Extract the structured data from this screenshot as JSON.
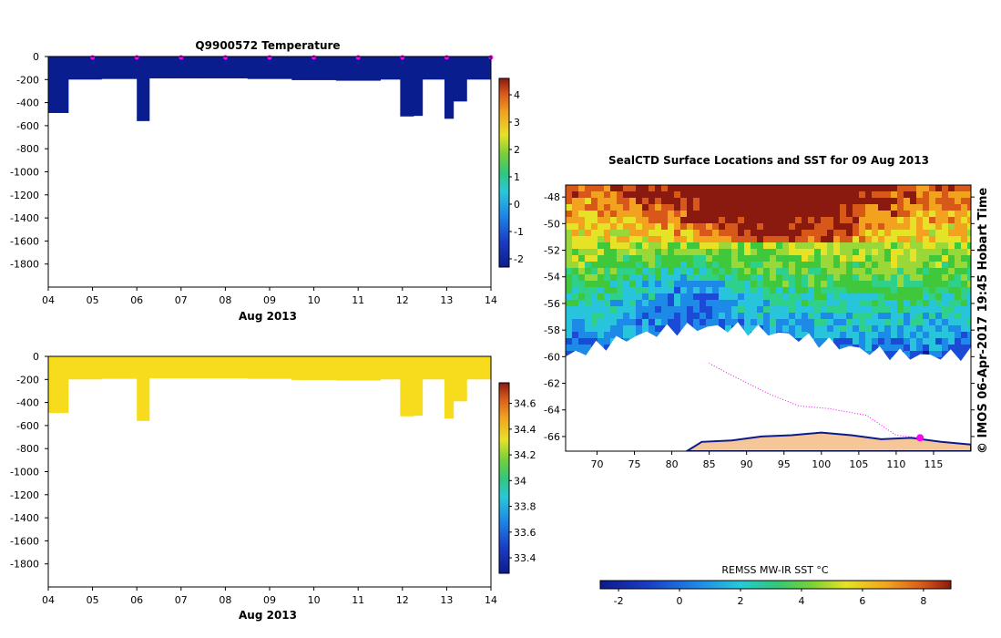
{
  "chart_data": [
    {
      "type": "heatmap",
      "title": "Q9900572  Temperature",
      "x_ticks": [
        "04",
        "05",
        "06",
        "07",
        "08",
        "09",
        "10",
        "11",
        "12",
        "13",
        "14"
      ],
      "xlabel": "Aug 2013",
      "y_ticks": [
        "0",
        "-200",
        "-400",
        "-600",
        "-800",
        "-1000",
        "-1200",
        "-1400",
        "-1600",
        "-1800"
      ],
      "ylim": [
        -2000,
        0
      ],
      "colorbar_ticks": [
        "4",
        "3",
        "2",
        "1",
        "0",
        "-1",
        "-2"
      ],
      "colorbar_range": [
        -2.3,
        4.6
      ],
      "fill_color": "#0a1d8e",
      "profiles": [
        {
          "x0": 4.0,
          "x1": 4.45,
          "depth": -490
        },
        {
          "x0": 4.45,
          "x1": 5.2,
          "depth": -200
        },
        {
          "x0": 5.2,
          "x1": 6.0,
          "depth": -195
        },
        {
          "x0": 6.0,
          "x1": 6.28,
          "depth": -560
        },
        {
          "x0": 6.28,
          "x1": 6.7,
          "depth": -190
        },
        {
          "x0": 6.7,
          "x1": 7.5,
          "depth": -190
        },
        {
          "x0": 7.5,
          "x1": 8.5,
          "depth": -190
        },
        {
          "x0": 8.5,
          "x1": 9.5,
          "depth": -195
        },
        {
          "x0": 9.5,
          "x1": 10.5,
          "depth": -205
        },
        {
          "x0": 10.5,
          "x1": 11.5,
          "depth": -210
        },
        {
          "x0": 11.5,
          "x1": 11.95,
          "depth": -200
        },
        {
          "x0": 11.95,
          "x1": 12.25,
          "depth": -520
        },
        {
          "x0": 12.25,
          "x1": 12.45,
          "depth": -515
        },
        {
          "x0": 12.45,
          "x1": 12.95,
          "depth": -200
        },
        {
          "x0": 12.95,
          "x1": 13.15,
          "depth": -540
        },
        {
          "x0": 13.15,
          "x1": 13.45,
          "depth": -390
        },
        {
          "x0": 13.45,
          "x1": 14.0,
          "depth": -200
        }
      ],
      "markers_x": [
        5.0,
        6.0,
        7.0,
        8.0,
        9.0,
        10.0,
        11.0,
        12.0,
        13.0,
        14.0
      ],
      "marker_color": "#ff00ff"
    },
    {
      "type": "heatmap",
      "title": "",
      "x_ticks": [
        "04",
        "05",
        "06",
        "07",
        "08",
        "09",
        "10",
        "11",
        "12",
        "13",
        "14"
      ],
      "xlabel": "Aug 2013",
      "y_ticks": [
        "0",
        "-200",
        "-400",
        "-600",
        "-800",
        "-1000",
        "-1200",
        "-1400",
        "-1600",
        "-1800"
      ],
      "ylim": [
        -2000,
        0
      ],
      "colorbar_ticks": [
        "34.6",
        "34.4",
        "34.2",
        "34",
        "33.8",
        "33.6",
        "33.4"
      ],
      "colorbar_range": [
        33.28,
        34.76
      ],
      "fill_color": "#f6dc1c",
      "profiles": [
        {
          "x0": 4.0,
          "x1": 4.45,
          "depth": -490
        },
        {
          "x0": 4.45,
          "x1": 5.2,
          "depth": -200
        },
        {
          "x0": 5.2,
          "x1": 6.0,
          "depth": -195
        },
        {
          "x0": 6.0,
          "x1": 6.28,
          "depth": -560
        },
        {
          "x0": 6.28,
          "x1": 6.7,
          "depth": -190
        },
        {
          "x0": 6.7,
          "x1": 7.5,
          "depth": -190
        },
        {
          "x0": 7.5,
          "x1": 8.5,
          "depth": -190
        },
        {
          "x0": 8.5,
          "x1": 9.5,
          "depth": -195
        },
        {
          "x0": 9.5,
          "x1": 10.5,
          "depth": -205
        },
        {
          "x0": 10.5,
          "x1": 11.5,
          "depth": -210
        },
        {
          "x0": 11.5,
          "x1": 11.95,
          "depth": -200
        },
        {
          "x0": 11.95,
          "x1": 12.25,
          "depth": -520
        },
        {
          "x0": 12.25,
          "x1": 12.45,
          "depth": -515
        },
        {
          "x0": 12.45,
          "x1": 12.95,
          "depth": -200
        },
        {
          "x0": 12.95,
          "x1": 13.15,
          "depth": -540
        },
        {
          "x0": 13.15,
          "x1": 13.45,
          "depth": -390
        },
        {
          "x0": 13.45,
          "x1": 14.0,
          "depth": -200
        }
      ]
    },
    {
      "type": "heatmap",
      "title": "SealCTD Surface Locations and SST for 09 Aug 2013",
      "x_ticks": [
        "70",
        "75",
        "80",
        "85",
        "90",
        "95",
        "100",
        "105",
        "110",
        "115"
      ],
      "y_ticks": [
        "-48",
        "-50",
        "-52",
        "-54",
        "-56",
        "-58",
        "-60",
        "-62",
        "-64",
        "-66"
      ],
      "xlim": [
        65.8,
        120
      ],
      "ylim": [
        -67.1,
        -47.1
      ],
      "colorbar_label": "REMSS MW-IR SST °C",
      "colorbar_ticks": [
        "-2",
        "0",
        "2",
        "4",
        "6",
        "8"
      ],
      "colorbar_range": [
        -2.6,
        8.9
      ],
      "side_label": "© IMOS 06-Apr-2017 19:45 Hobart Time",
      "track_color": "#ff00ff",
      "land_color": "#f4c698",
      "track": [
        [
          113.2,
          -66.1
        ],
        [
          110,
          -65.9
        ],
        [
          106,
          -64.4
        ],
        [
          101,
          -63.9
        ],
        [
          97,
          -63.7
        ],
        [
          93,
          -62.8
        ],
        [
          88,
          -61.4
        ],
        [
          85,
          -60.5
        ]
      ],
      "palette": [
        "#0c1b8c",
        "#1a4ad6",
        "#1e8ae8",
        "#28c4dc",
        "#2fd08a",
        "#3fc83c",
        "#9ad83a",
        "#e6e226",
        "#f2a21e",
        "#d8581a",
        "#8a1a10"
      ]
    }
  ]
}
